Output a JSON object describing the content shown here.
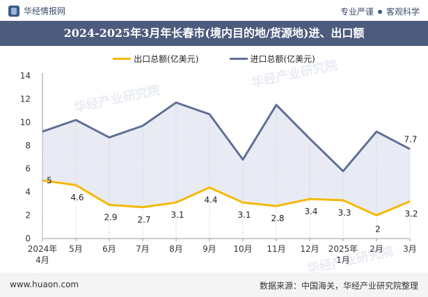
{
  "header": {
    "brand": "华经情报网",
    "tagline_left": "专业严谨",
    "tagline_right": "客观科学"
  },
  "footer": {
    "website": "www.huaon.com",
    "source": "数据来源：中国海关，华经产业研究院整理"
  },
  "watermark": "华经产业研究院",
  "colors": {
    "export": "#f5b800",
    "import": "#5f6f95",
    "fill": "#e2e6f0",
    "title_bg": "#4d5c7e"
  },
  "chart_data": {
    "type": "line",
    "title": "2024-2025年3月年长春市(境内目的地/货源地)进、出口额",
    "categories": [
      "2024年\n4月",
      "5月",
      "6月",
      "7月",
      "8月",
      "9月",
      "10月",
      "11月",
      "12月",
      "2025年\n1月",
      "2月",
      "3月"
    ],
    "series": [
      {
        "name": "出口总额(亿美元)",
        "values": [
          5,
          4.6,
          2.9,
          2.7,
          3.1,
          4.4,
          3.1,
          2.8,
          3.4,
          3.3,
          2,
          3.2
        ]
      },
      {
        "name": "进口总额(亿美元)",
        "values": [
          9.2,
          10.2,
          8.7,
          9.7,
          11.7,
          10.7,
          6.8,
          11.5,
          8.6,
          5.8,
          9.2,
          7.7
        ]
      }
    ],
    "import_labels": [
      "",
      "",
      "",
      "",
      "",
      "",
      "",
      "",
      "",
      "",
      "",
      "7.7"
    ],
    "yticks": [
      0,
      2,
      4,
      6,
      8,
      10,
      12,
      14
    ],
    "ylim": [
      0,
      14
    ],
    "xlabel": "",
    "ylabel": ""
  }
}
